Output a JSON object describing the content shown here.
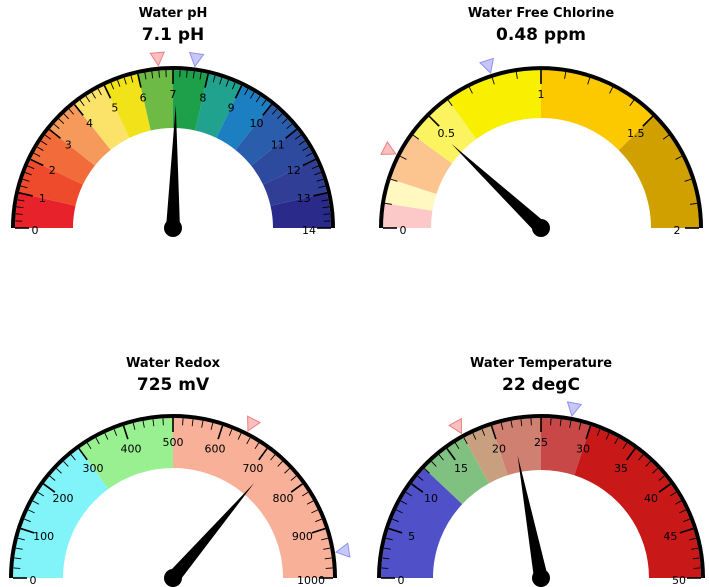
{
  "chart_data": [
    {
      "type": "gauge",
      "title": "Water pH",
      "value_display": "7.1 pH",
      "value": 7.1,
      "range": [
        0,
        14
      ],
      "tick_labels": [
        "0",
        "1",
        "2",
        "3",
        "4",
        "5",
        "6",
        "7",
        "8",
        "9",
        "10",
        "11",
        "12",
        "13",
        "14"
      ],
      "tick_values": [
        0,
        1,
        2,
        3,
        4,
        5,
        6,
        7,
        8,
        9,
        10,
        11,
        12,
        13,
        14
      ],
      "bands": [
        {
          "from": 0,
          "to": 1,
          "color": "#e8222a"
        },
        {
          "from": 1,
          "to": 2,
          "color": "#ee4a2c"
        },
        {
          "from": 2,
          "to": 3,
          "color": "#f26b3a"
        },
        {
          "from": 3,
          "to": 4,
          "color": "#f59a5a"
        },
        {
          "from": 4,
          "to": 5,
          "color": "#fbe36a"
        },
        {
          "from": 5,
          "to": 6,
          "color": "#f2e21a"
        },
        {
          "from": 6,
          "to": 7,
          "color": "#6dbb45"
        },
        {
          "from": 7,
          "to": 8,
          "color": "#1ea04a"
        },
        {
          "from": 8,
          "to": 9,
          "color": "#20a28e"
        },
        {
          "from": 9,
          "to": 10,
          "color": "#1b7fc2"
        },
        {
          "from": 10,
          "to": 11,
          "color": "#2a5eac"
        },
        {
          "from": 11,
          "to": 12,
          "color": "#2e4a9e"
        },
        {
          "from": 12,
          "to": 13,
          "color": "#303e96"
        },
        {
          "from": 13,
          "to": 14,
          "color": "#2a2a8a"
        }
      ],
      "markers": [
        {
          "value": 6.6,
          "color": "#f08080"
        },
        {
          "value": 7.6,
          "color": "#9090f0"
        }
      ]
    },
    {
      "type": "gauge",
      "title": "Water Free Chlorine",
      "value_display": "0.48 ppm",
      "value": 0.48,
      "range": [
        0,
        2
      ],
      "tick_labels": [
        "0",
        "0.5",
        "1",
        "1.5",
        "2"
      ],
      "tick_values": [
        0,
        0.5,
        1,
        1.5,
        2
      ],
      "bands": [
        {
          "from": 0,
          "to": 0.1,
          "color": "#fcc8c8"
        },
        {
          "from": 0.1,
          "to": 0.2,
          "color": "#fff8c0"
        },
        {
          "from": 0.2,
          "to": 0.4,
          "color": "#fcc590"
        },
        {
          "from": 0.4,
          "to": 0.6,
          "color": "#fbf460"
        },
        {
          "from": 0.6,
          "to": 1.0,
          "color": "#f8f000"
        },
        {
          "from": 1.0,
          "to": 1.5,
          "color": "#fcc800"
        },
        {
          "from": 1.5,
          "to": 2.0,
          "color": "#d0a000"
        }
      ],
      "markers": [
        {
          "value": 0.3,
          "color": "#f08080"
        },
        {
          "value": 0.8,
          "color": "#9090f0"
        }
      ]
    },
    {
      "type": "gauge",
      "title": "Water Redox",
      "value_display": "725 mV",
      "value": 725,
      "range": [
        0,
        1000
      ],
      "tick_labels": [
        "0",
        "100",
        "200",
        "300",
        "400",
        "500",
        "600",
        "700",
        "800",
        "900",
        "1000"
      ],
      "tick_values": [
        0,
        100,
        200,
        300,
        400,
        500,
        600,
        700,
        800,
        900,
        1000
      ],
      "bands": [
        {
          "from": 0,
          "to": 300,
          "color": "#80f4f8"
        },
        {
          "from": 300,
          "to": 500,
          "color": "#98f090"
        },
        {
          "from": 500,
          "to": 1000,
          "color": "#f8b098"
        }
      ],
      "markers": [
        {
          "value": 650,
          "color": "#f08080"
        },
        {
          "value": 950,
          "color": "#9090f0"
        }
      ]
    },
    {
      "type": "gauge",
      "title": "Water Temperature",
      "value_display": "22 degC",
      "value": 22,
      "range": [
        0,
        50
      ],
      "tick_labels": [
        "0",
        "5",
        "10",
        "15",
        "20",
        "25",
        "30",
        "35",
        "40",
        "45",
        "50"
      ],
      "tick_values": [
        0,
        5,
        10,
        15,
        20,
        25,
        30,
        35,
        40,
        45,
        50
      ],
      "bands": [
        {
          "from": 0,
          "to": 12,
          "color": "#5050c8"
        },
        {
          "from": 12,
          "to": 17,
          "color": "#80c080"
        },
        {
          "from": 17,
          "to": 20,
          "color": "#c8a080"
        },
        {
          "from": 20,
          "to": 25,
          "color": "#d08070"
        },
        {
          "from": 25,
          "to": 30,
          "color": "#c84848"
        },
        {
          "from": 30,
          "to": 50,
          "color": "#c81818"
        }
      ],
      "markers": [
        {
          "value": 17,
          "color": "#f08080"
        },
        {
          "value": 28,
          "color": "#9090f0"
        }
      ]
    }
  ]
}
